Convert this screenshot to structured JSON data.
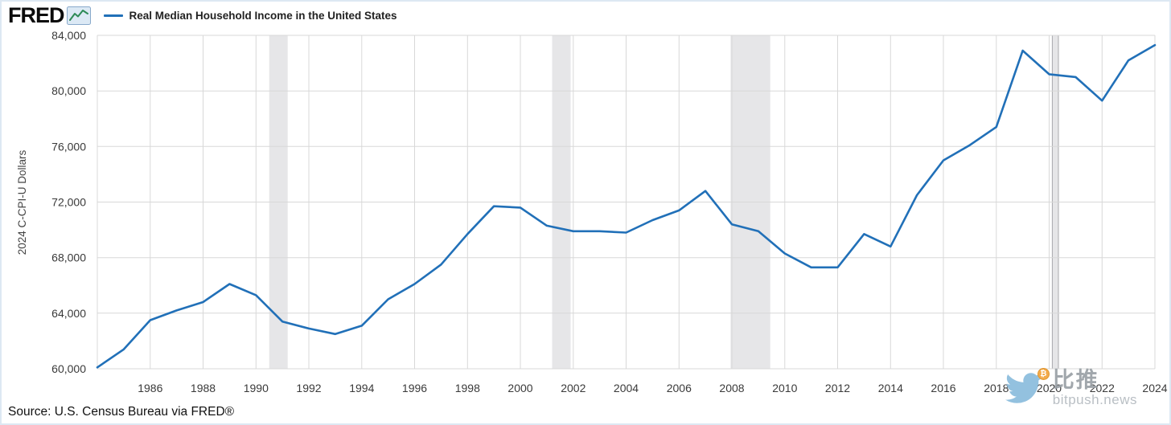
{
  "header": {
    "logo_text": "FRED",
    "legend": {
      "series_label": "Real Median Household Income in the United States",
      "swatch_color": "#2170b8"
    }
  },
  "chart_data": {
    "type": "line",
    "title": "Real Median Household Income in the United States",
    "xlabel": "",
    "ylabel": "2024 C-CPI-U Dollars",
    "x": [
      1984,
      1985,
      1986,
      1987,
      1988,
      1989,
      1990,
      1991,
      1992,
      1993,
      1994,
      1995,
      1996,
      1997,
      1998,
      1999,
      2000,
      2001,
      2002,
      2003,
      2004,
      2005,
      2006,
      2007,
      2008,
      2009,
      2010,
      2011,
      2012,
      2013,
      2014,
      2015,
      2016,
      2017,
      2018,
      2019,
      2020,
      2021,
      2022,
      2023,
      2024
    ],
    "values": [
      60100,
      61400,
      63500,
      64200,
      64800,
      66100,
      65300,
      63400,
      62900,
      62500,
      63100,
      65000,
      66100,
      67500,
      69700,
      71700,
      71600,
      70300,
      69900,
      69900,
      69800,
      70700,
      71400,
      72800,
      70400,
      69900,
      68300,
      67300,
      67300,
      69700,
      68800,
      72500,
      75000,
      76100,
      77400,
      82900,
      81200,
      81000,
      79300,
      82200,
      83300
    ],
    "xlim": [
      1984,
      2024
    ],
    "ylim": [
      60000,
      84000
    ],
    "yticks": [
      60000,
      64000,
      68000,
      72000,
      76000,
      80000,
      84000
    ],
    "xticks": [
      1986,
      1988,
      1990,
      1992,
      1994,
      1996,
      1998,
      2000,
      2002,
      2004,
      2006,
      2008,
      2010,
      2012,
      2014,
      2016,
      2018,
      2020,
      2022,
      2024
    ],
    "grid": true,
    "legend_position": "top-left",
    "recession_bands": [
      {
        "start": 1990.5,
        "end": 1991.2
      },
      {
        "start": 2001.2,
        "end": 2001.9
      },
      {
        "start": 2007.95,
        "end": 2009.45
      },
      {
        "start": 2020.12,
        "end": 2020.35
      }
    ],
    "colors": {
      "line": "#2170b8",
      "grid": "#d8d8d8",
      "recession": "#e6e6e8",
      "recession_edge": "#a9a9ad",
      "tick_text": "#3a3a3a"
    }
  },
  "footer": {
    "source": "Source: U.S. Census Bureau via FRED®"
  },
  "watermark": {
    "cn_name": "比推",
    "domain": "bitpush.news",
    "coin_symbol": "₿"
  }
}
